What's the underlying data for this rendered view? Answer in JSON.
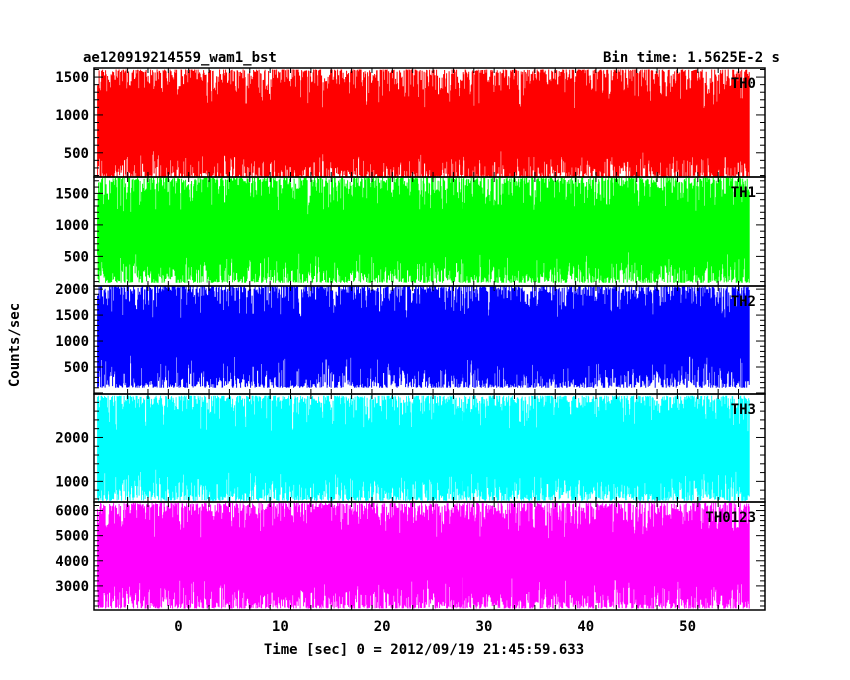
{
  "header": {
    "title": "ae120919214559_wam1_bst",
    "bin_time": "Bin time: 1.5625E-2 s"
  },
  "chart_data": {
    "type": "line",
    "xlabel": "Time [sec] 0 = 2012/09/19 21:45:59.633",
    "ylabel": "Counts/sec",
    "xlim": [
      -8.3,
      57.6
    ],
    "x_data_range": [
      -7.95,
      56.05
    ],
    "x_ticks": [
      0,
      10,
      20,
      30,
      40,
      50
    ],
    "x_tick_labels": [
      "0",
      "10",
      "20",
      "30",
      "40",
      "50"
    ],
    "grid": false,
    "panels": [
      {
        "label": "TH0",
        "color": "#ff0000",
        "ylim": [
          180,
          1620
        ],
        "y_ticks": [
          500,
          1000,
          1500
        ],
        "y_tick_labels": [
          "500",
          "1000",
          "1500"
        ],
        "signal_range": [
          150,
          1600
        ],
        "signal_mean": 780
      },
      {
        "label": "TH1",
        "color": "#00ff00",
        "ylim": [
          30,
          1760
        ],
        "y_ticks": [
          500,
          1000,
          1500
        ],
        "y_tick_labels": [
          "500",
          "1000",
          "1500"
        ],
        "signal_range": [
          80,
          1750
        ],
        "signal_mean": 830
      },
      {
        "label": "TH2",
        "color": "#0000ff",
        "ylim": [
          -20,
          2060
        ],
        "y_ticks": [
          500,
          1000,
          1500,
          2000
        ],
        "y_tick_labels": [
          "500",
          "1000",
          "1500",
          "2000"
        ],
        "signal_range": [
          100,
          2060
        ],
        "signal_mean": 1080
      },
      {
        "label": "TH3",
        "color": "#00ffff",
        "ylim": [
          530,
          2990
        ],
        "y_ticks": [
          1000,
          2000
        ],
        "y_tick_labels": [
          "1000",
          "2000"
        ],
        "signal_range": [
          560,
          2950
        ],
        "signal_mean": 1700
      },
      {
        "label": "TH0123",
        "color": "#ff00ff",
        "ylim": [
          2040,
          6340
        ],
        "y_ticks": [
          3000,
          4000,
          5000,
          6000
        ],
        "y_tick_labels": [
          "3000",
          "4000",
          "5000",
          "6000"
        ],
        "signal_range": [
          2100,
          6300
        ],
        "signal_mean": 4000
      }
    ]
  }
}
